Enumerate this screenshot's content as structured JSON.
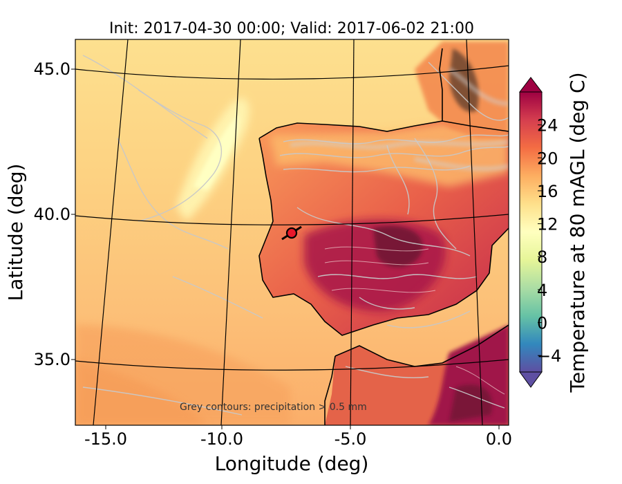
{
  "title": "Init: 2017-04-30 00:00; Valid: 2017-06-02 21:00",
  "axes": {
    "xlabel": "Longitude (deg)",
    "ylabel": "Latitude (deg)",
    "xticks": [
      "-15.0",
      "-10.0",
      "-5.0",
      "0.0"
    ],
    "yticks": [
      "45.0",
      "40.0",
      "35.0"
    ]
  },
  "annotation": "Grey contours: precipitation > 0.5 mm",
  "colorbar": {
    "label": "Temperature at 80 mAGL (deg C)",
    "ticks": [
      "−4",
      "0",
      "4",
      "8",
      "12",
      "16",
      "20",
      "24"
    ],
    "tick_values": [
      -4,
      0,
      4,
      8,
      12,
      16,
      20,
      24
    ],
    "range": [
      -6,
      28
    ],
    "extend": "both",
    "colormap": "Spectral_r",
    "colors": [
      "#5e4fa2",
      "#3288bd",
      "#66c2a5",
      "#abdda4",
      "#e6f598",
      "#ffffbf",
      "#fee08b",
      "#fdae61",
      "#f46d43",
      "#d53e4f",
      "#9e0142"
    ]
  },
  "map": {
    "region": "Iberian Peninsula",
    "lon_range": [
      -16,
      0.3
    ],
    "lat_range": [
      32.7,
      46.1
    ],
    "marker": {
      "lon": -7.6,
      "lat": 39.4,
      "color": "#e8192c"
    },
    "precip_contour_color": "#c8c8c8",
    "coastline_color": "#000000"
  }
}
